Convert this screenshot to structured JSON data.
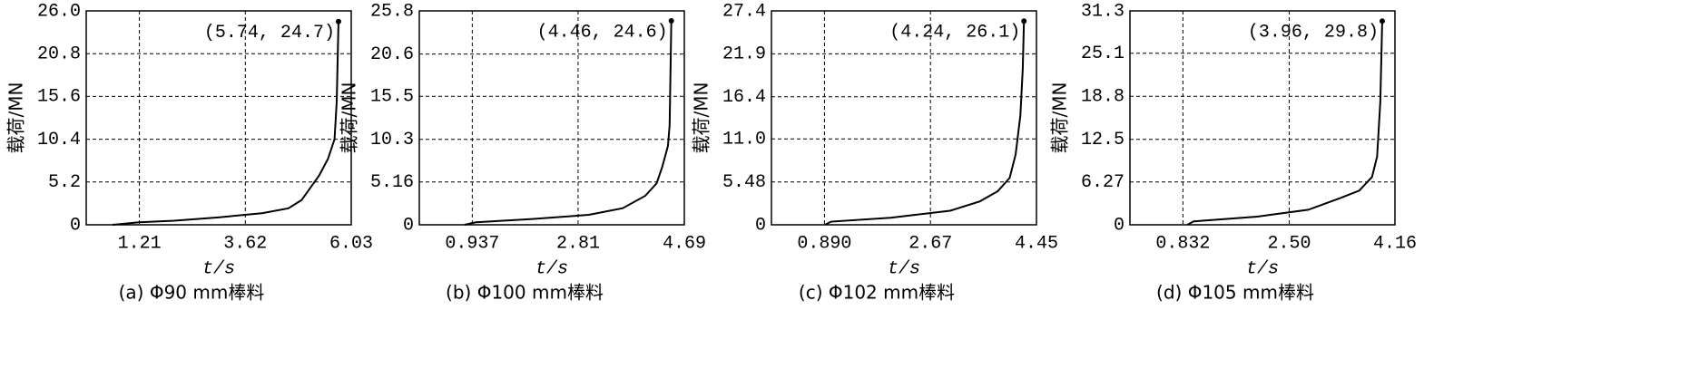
{
  "chart_data": [
    {
      "type": "line",
      "title": "(a) Φ90 mm棒料",
      "xlabel": "t/s",
      "ylabel": "载荷/MN",
      "annotation": "(5.74, 24.7)",
      "xlim": [
        0,
        6.03
      ],
      "xticks": [
        1.21,
        3.62,
        6.03
      ],
      "ylim": [
        0,
        26
      ],
      "yticks": [
        0,
        5.2,
        10.4,
        15.6,
        20.8,
        {
          "value": 26,
          "label": "26.0"
        }
      ],
      "grid": true,
      "color": "#000000",
      "x": [
        0.6,
        1.2,
        2.0,
        3.0,
        4.0,
        4.6,
        4.9,
        5.1,
        5.3,
        5.5,
        5.65,
        5.7,
        5.74
      ],
      "values": [
        0,
        0.3,
        0.5,
        0.9,
        1.4,
        2.0,
        3.0,
        4.5,
        6.0,
        8.0,
        10.4,
        15,
        24.7
      ]
    },
    {
      "type": "line",
      "title": "(b) Φ100 mm棒料",
      "xlabel": "t/s",
      "ylabel": "载荷/MN",
      "annotation": "(4.46, 24.6)",
      "xlim": [
        0,
        4.69
      ],
      "xticks": [
        0.937,
        2.81,
        4.69
      ],
      "ylim": [
        0,
        25.8
      ],
      "yticks": [
        0,
        5.16,
        10.3,
        15.5,
        20.6,
        25.8
      ],
      "grid": true,
      "color": "#000000",
      "x": [
        0.8,
        1.0,
        2.0,
        3.0,
        3.6,
        4.0,
        4.2,
        4.3,
        4.4,
        4.43,
        4.46
      ],
      "values": [
        0,
        0.3,
        0.7,
        1.2,
        2.0,
        3.5,
        5.0,
        7.0,
        9.5,
        12,
        24.6
      ]
    },
    {
      "type": "line",
      "title": "(c) Φ102 mm棒料",
      "xlabel": "t/s",
      "ylabel": "载荷/MN",
      "annotation": "(4.24, 26.1)",
      "xlim": [
        0,
        4.45
      ],
      "xticks": [
        {
          "value": 0.89,
          "label": "0.890"
        },
        2.67,
        4.45
      ],
      "ylim": [
        0,
        27.4
      ],
      "yticks": [
        0,
        5.48,
        {
          "value": 11,
          "label": "11.0"
        },
        16.4,
        21.9,
        27.4
      ],
      "grid": true,
      "color": "#000000",
      "x": [
        0.9,
        1.0,
        2.0,
        3.0,
        3.5,
        3.8,
        4.0,
        4.1,
        4.18,
        4.22,
        4.24
      ],
      "values": [
        0,
        0.4,
        0.9,
        1.8,
        3.0,
        4.3,
        6,
        9,
        14,
        20,
        26.1
      ]
    },
    {
      "type": "line",
      "title": "(d) Φ105 mm棒料",
      "xlabel": "t/s",
      "ylabel": "载荷/MN",
      "annotation": "(3.96, 29.8)",
      "xlim": [
        0,
        4.16
      ],
      "xticks": [
        0.832,
        {
          "value": 2.5,
          "label": "2.50"
        },
        4.16
      ],
      "ylim": [
        0,
        31.3
      ],
      "yticks": [
        0,
        6.27,
        12.5,
        18.8,
        25.1,
        31.3
      ],
      "grid": true,
      "color": "#000000",
      "x": [
        0.9,
        1.0,
        2.0,
        2.8,
        3.3,
        3.6,
        3.8,
        3.88,
        3.93,
        3.96
      ],
      "values": [
        0,
        0.5,
        1.2,
        2.2,
        3.9,
        5,
        7,
        10,
        18,
        29.8
      ]
    }
  ]
}
